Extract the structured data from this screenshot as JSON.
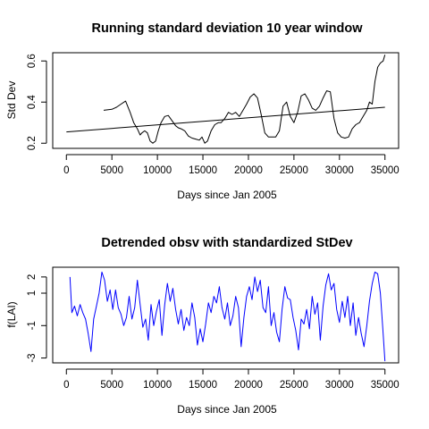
{
  "chart_data": [
    {
      "type": "line",
      "title": "Running standard deviation 10 year window",
      "xlabel": "Days since Jan 2005",
      "ylabel": "Std Dev",
      "xlim": [
        -1500,
        36500
      ],
      "ylim": [
        0.175,
        0.64
      ],
      "xticks": [
        0,
        5000,
        10000,
        15000,
        20000,
        25000,
        30000,
        35000
      ],
      "yticks": [
        0.2,
        0.4,
        0.6
      ],
      "series": [
        {
          "color": "#000000",
          "x": [
            4100,
            5000,
            5500,
            6000,
            6500,
            7000,
            7400,
            7800,
            8100,
            8300,
            8600,
            8900,
            9200,
            9500,
            9800,
            10100,
            10400,
            10800,
            11200,
            11600,
            12000,
            12300,
            12600,
            13000,
            13400,
            13800,
            14200,
            14600,
            14900,
            15200,
            15500,
            15900,
            16300,
            16700,
            17000,
            17400,
            17800,
            18200,
            18600,
            19000,
            19400,
            19800,
            20200,
            20600,
            21000,
            21400,
            21800,
            22200,
            22600,
            23000,
            23400,
            23800,
            24200,
            24600,
            25000,
            25400,
            25800,
            26200,
            26600,
            27000,
            27400,
            27800,
            28200,
            28600,
            29000,
            29400,
            29800,
            30200,
            30600,
            31000,
            31400,
            31800,
            32200,
            32600,
            33000,
            33300,
            33600,
            33900,
            34200,
            34500,
            34800,
            35000
          ],
          "y": [
            0.36,
            0.365,
            0.375,
            0.39,
            0.405,
            0.35,
            0.3,
            0.27,
            0.24,
            0.25,
            0.26,
            0.25,
            0.21,
            0.2,
            0.21,
            0.26,
            0.3,
            0.33,
            0.335,
            0.31,
            0.285,
            0.275,
            0.27,
            0.26,
            0.235,
            0.225,
            0.22,
            0.215,
            0.23,
            0.2,
            0.21,
            0.26,
            0.29,
            0.3,
            0.3,
            0.32,
            0.35,
            0.34,
            0.35,
            0.33,
            0.36,
            0.39,
            0.425,
            0.44,
            0.42,
            0.34,
            0.25,
            0.23,
            0.23,
            0.23,
            0.26,
            0.38,
            0.4,
            0.33,
            0.3,
            0.35,
            0.43,
            0.44,
            0.41,
            0.37,
            0.36,
            0.38,
            0.42,
            0.455,
            0.45,
            0.32,
            0.25,
            0.23,
            0.225,
            0.23,
            0.27,
            0.29,
            0.3,
            0.33,
            0.36,
            0.4,
            0.39,
            0.5,
            0.57,
            0.59,
            0.6,
            0.63
          ]
        },
        {
          "color": "#000000",
          "x": [
            0,
            35000
          ],
          "y": [
            0.255,
            0.375
          ]
        }
      ]
    },
    {
      "type": "line",
      "title": "Detrended obsv with standardized StDev",
      "xlabel": "Days since Jan 2005",
      "ylabel": "f(LAI)",
      "xlim": [
        -1500,
        36500
      ],
      "ylim": [
        -3.3,
        2.6
      ],
      "xticks": [
        0,
        5000,
        10000,
        15000,
        20000,
        25000,
        30000,
        35000
      ],
      "yticks": [
        2,
        1,
        -1,
        -3
      ],
      "yticklabels": [
        "2",
        "1",
        "-1",
        "-3"
      ],
      "series": [
        {
          "color": "#0000ff",
          "x": [
            400,
            600,
            900,
            1200,
            1500,
            1800,
            2100,
            2400,
            2700,
            3000,
            3300,
            3600,
            3900,
            4200,
            4500,
            4800,
            5100,
            5400,
            5700,
            6000,
            6300,
            6600,
            6900,
            7200,
            7500,
            7800,
            8100,
            8400,
            8700,
            9000,
            9300,
            9600,
            9900,
            10200,
            10500,
            10800,
            11100,
            11400,
            11700,
            12000,
            12300,
            12600,
            12900,
            13200,
            13500,
            13800,
            14100,
            14400,
            14700,
            15000,
            15300,
            15600,
            15900,
            16200,
            16500,
            16800,
            17100,
            17400,
            17700,
            18000,
            18300,
            18600,
            18900,
            19200,
            19500,
            19800,
            20100,
            20400,
            20700,
            21000,
            21300,
            21600,
            21900,
            22200,
            22500,
            22800,
            23100,
            23400,
            23700,
            24000,
            24300,
            24600,
            24900,
            25200,
            25500,
            25800,
            26100,
            26400,
            26700,
            27000,
            27300,
            27600,
            27900,
            28200,
            28500,
            28800,
            29100,
            29400,
            29700,
            30000,
            30300,
            30600,
            30900,
            31200,
            31500,
            31800,
            32100,
            32400,
            32700,
            33000,
            33300,
            33600,
            33900,
            34200,
            34500,
            34800,
            35000
          ],
          "y": [
            2.0,
            -0.2,
            0.2,
            -0.4,
            0.3,
            -0.2,
            -0.6,
            -1.5,
            -2.6,
            -0.6,
            0.2,
            1.0,
            2.3,
            1.8,
            0.5,
            1.2,
            0.0,
            1.2,
            0.1,
            -0.3,
            -1.0,
            -0.5,
            0.8,
            -0.6,
            0.1,
            1.8,
            0.3,
            -1.1,
            -0.6,
            -1.9,
            0.3,
            -1.0,
            -0.1,
            0.6,
            -1.6,
            0.3,
            1.6,
            0.5,
            1.3,
            0.0,
            -0.9,
            0.0,
            -1.3,
            -0.5,
            -1.0,
            0.4,
            -0.5,
            -2.2,
            -1.2,
            -2.0,
            -0.9,
            0.4,
            -0.2,
            0.8,
            0.4,
            1.4,
            0.1,
            -0.6,
            0.4,
            -1.0,
            -0.4,
            0.8,
            0.1,
            -2.3,
            -0.5,
            0.8,
            1.4,
            0.6,
            2.0,
            1.1,
            1.8,
            0.1,
            -0.2,
            1.4,
            -1.0,
            -0.2,
            -1.4,
            -2.0,
            0.0,
            1.4,
            0.7,
            0.6,
            -0.5,
            -1.3,
            -2.5,
            -0.6,
            -0.9,
            0.0,
            -1.2,
            0.8,
            -0.3,
            0.4,
            -1.9,
            0.2,
            1.5,
            2.2,
            1.2,
            1.6,
            0.0,
            -0.8,
            0.5,
            -0.5,
            0.8,
            -1.0,
            0.4,
            -1.6,
            -0.5,
            -1.5,
            -2.3,
            -1.0,
            0.5,
            1.6,
            2.3,
            2.2,
            1.0,
            -1.5,
            -3.2
          ]
        }
      ]
    }
  ]
}
